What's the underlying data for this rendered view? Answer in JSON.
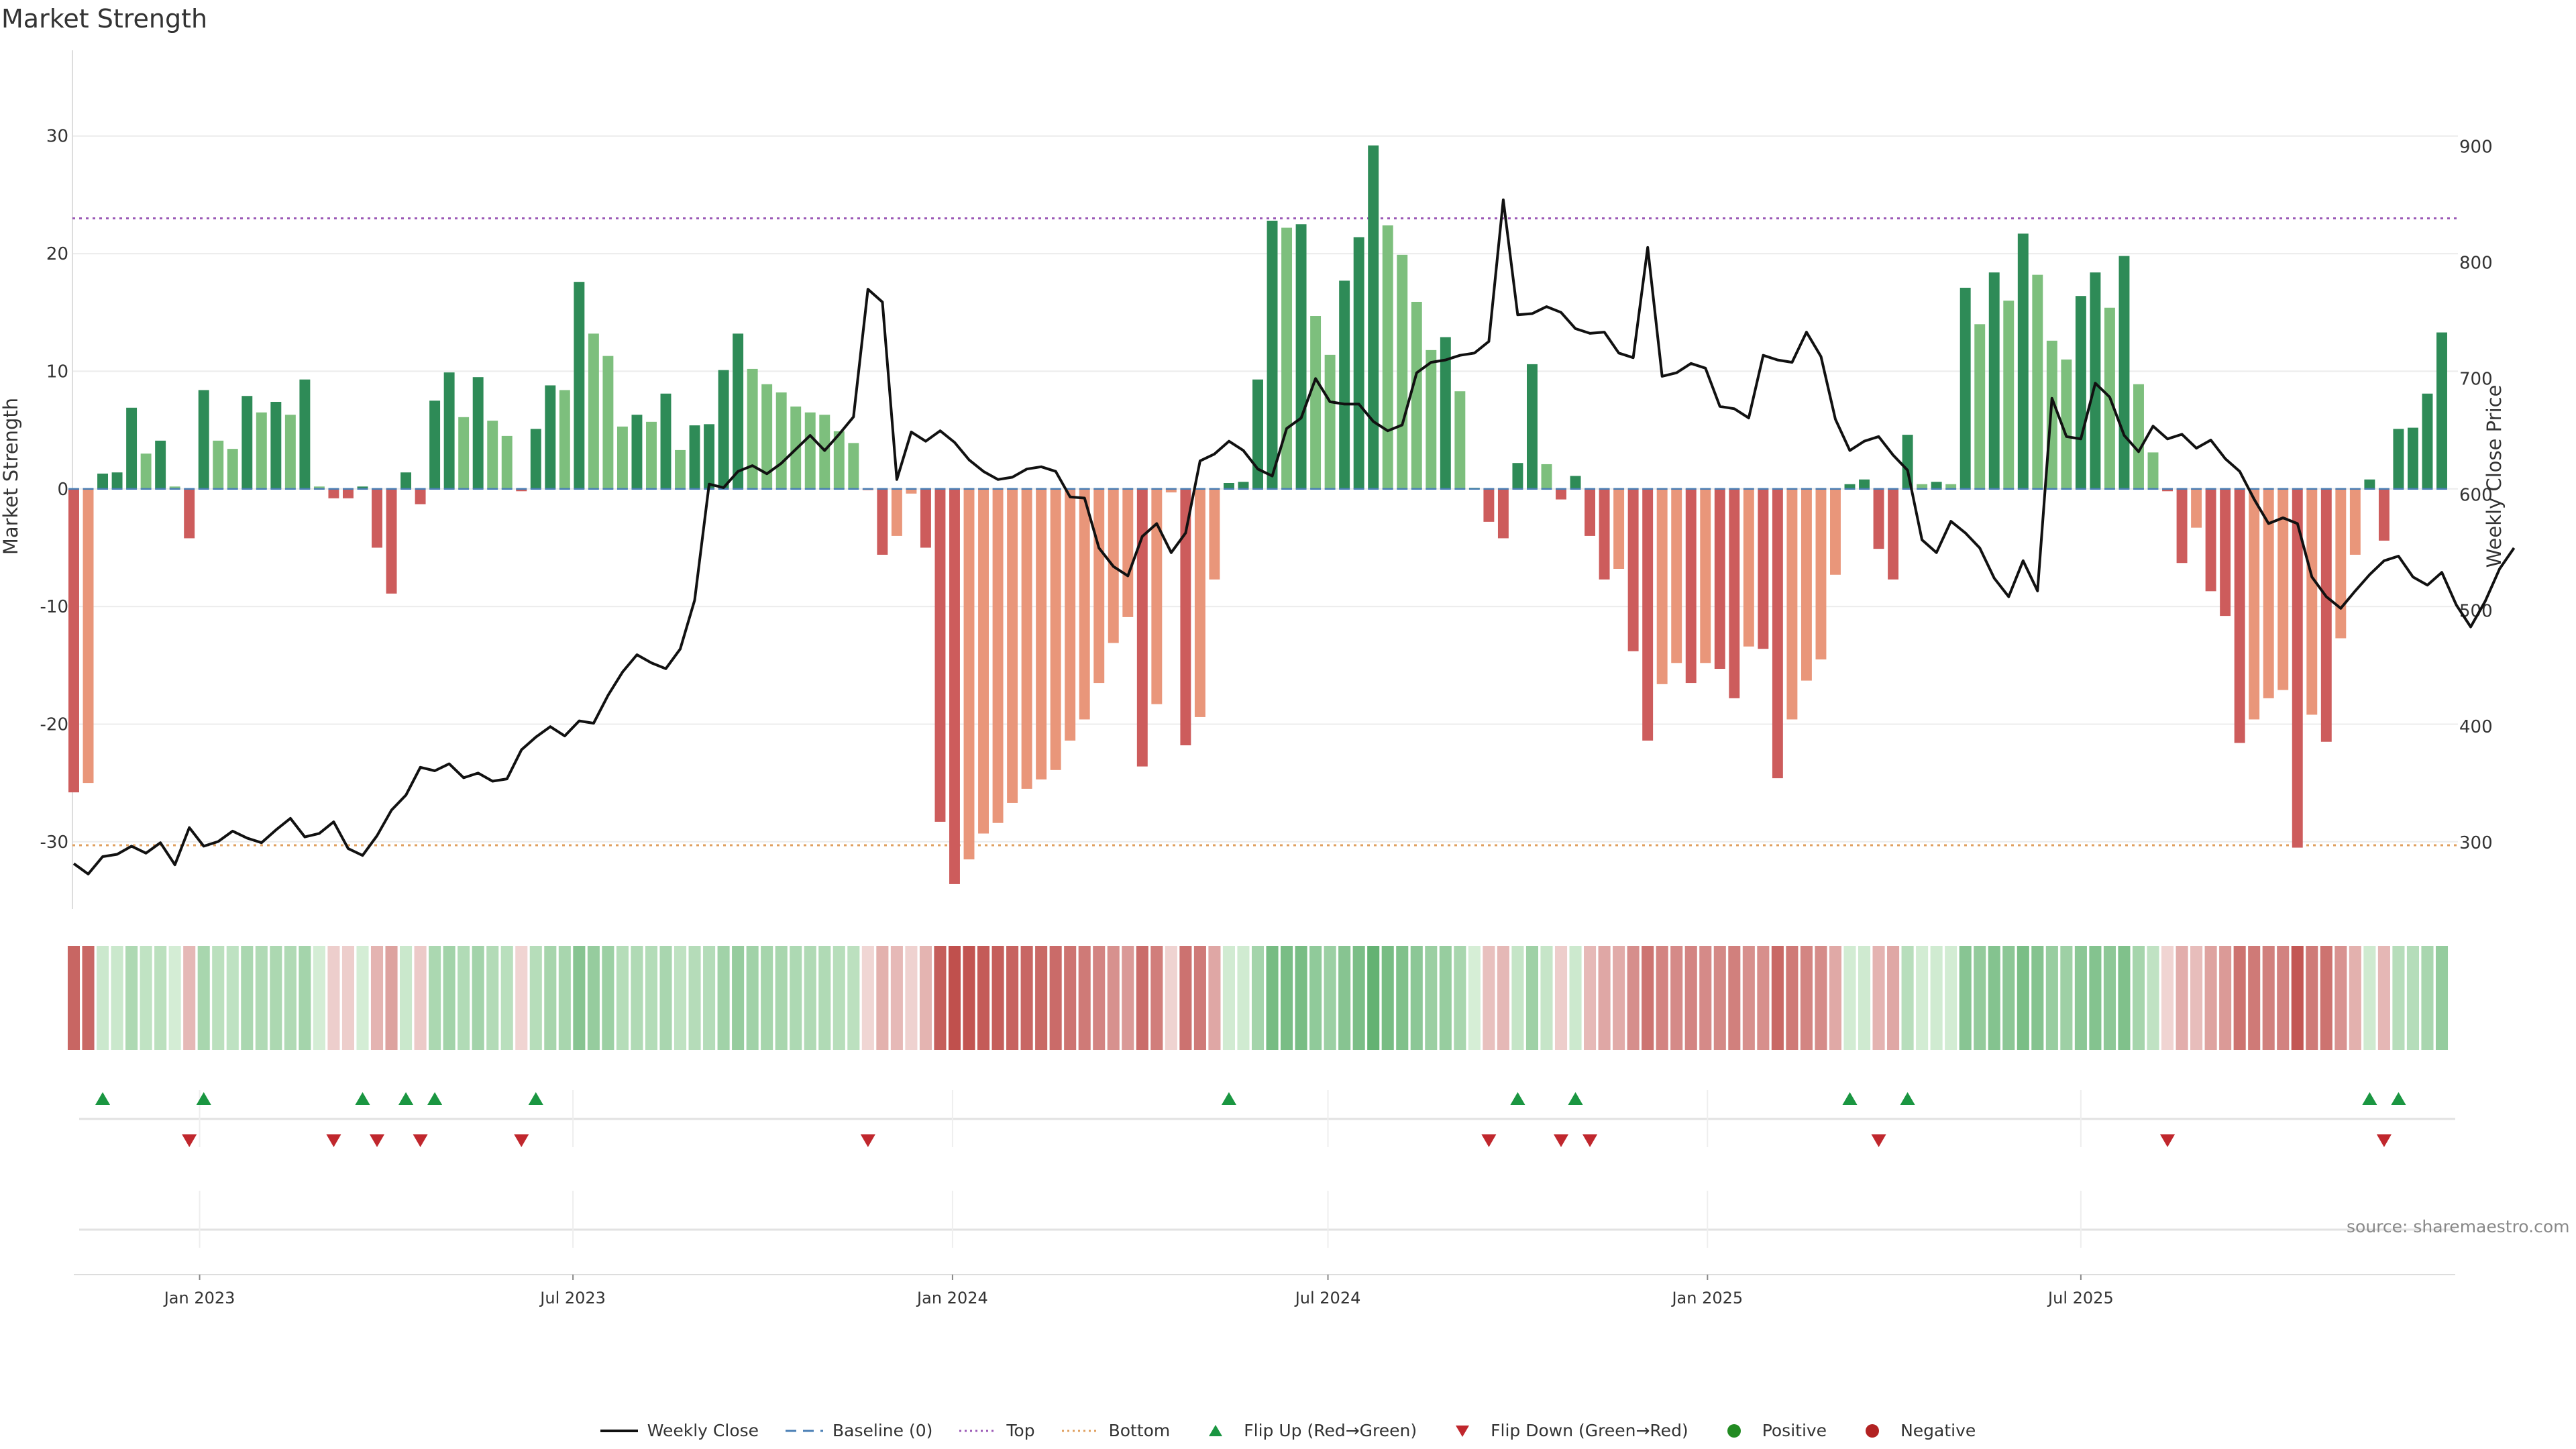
{
  "title": "Market Strength",
  "source_label": "source: sharemaestro.com",
  "colors": {
    "pos_dark": "#2e8b57",
    "pos_light": "#7dbf7d",
    "neg_dark": "#cd5c5c",
    "neg_light": "#e9967a",
    "price": "#111111",
    "baseline": "#4a7fb5",
    "top": "#9b59b6",
    "bottom": "#e0a060",
    "flip_up": "#1a9641",
    "flip_down": "#c0272d",
    "positive": "#228b22",
    "negative": "#b22222"
  },
  "legend": [
    {
      "key": "price",
      "label": "Weekly Close"
    },
    {
      "key": "baseline",
      "label": "Baseline (0)"
    },
    {
      "key": "top",
      "label": "Top"
    },
    {
      "key": "bottom",
      "label": "Bottom"
    },
    {
      "key": "flip_up",
      "label": "Flip Up (Red→Green)"
    },
    {
      "key": "flip_down",
      "label": "Flip Down (Green→Red)"
    },
    {
      "key": "positive",
      "label": "Positive"
    },
    {
      "key": "negative",
      "label": "Negative"
    }
  ],
  "chart_data": {
    "type": "bar",
    "start_date": "2022-11-01",
    "week_step_days": 7,
    "ylabel": "Market Strength",
    "y2label": "Weekly Close Price",
    "ylim": [
      -36,
      37
    ],
    "y2lim": [
      240,
      980
    ],
    "yticks": [
      -30,
      -20,
      -10,
      0,
      10,
      20,
      30
    ],
    "y2ticks": [
      300,
      400,
      500,
      600,
      700,
      800,
      900
    ],
    "top_level": 23,
    "bottom_level": -30.3,
    "xticks": [
      {
        "date": "2023-01-01",
        "label": "Jan 2023"
      },
      {
        "date": "2023-07-01",
        "label": "Jul 2023"
      },
      {
        "date": "2024-01-01",
        "label": "Jan 2024"
      },
      {
        "date": "2024-07-01",
        "label": "Jul 2024"
      },
      {
        "date": "2025-01-01",
        "label": "Jan 2025"
      },
      {
        "date": "2025-07-01",
        "label": "Jul 2025"
      }
    ],
    "strength": [
      -25.8,
      -25,
      1.3,
      1.4,
      6.9,
      3,
      4.1,
      0.2,
      -4.2,
      8.4,
      4.1,
      3.4,
      7.9,
      6.5,
      7.4,
      6.3,
      9.3,
      0.2,
      -0.8,
      -0.8,
      0.2,
      -5,
      -8.9,
      1.4,
      -1.3,
      7.5,
      9.9,
      6.1,
      9.5,
      5.8,
      4.5,
      -0.2,
      5.1,
      8.8,
      8.4,
      17.6,
      13.2,
      11.3,
      5.3,
      6.3,
      5.7,
      8.1,
      3.3,
      5.4,
      5.5,
      10.1,
      13.2,
      10.2,
      8.9,
      8.2,
      7,
      6.5,
      6.3,
      4.9,
      3.9,
      -0.1,
      -5.6,
      -4,
      -0.4,
      -5,
      -28.3,
      -33.6,
      -31.5,
      -29.3,
      -28.4,
      -26.7,
      -25.5,
      -24.7,
      -23.9,
      -21.4,
      -19.6,
      -16.5,
      -13.1,
      -10.9,
      -23.6,
      -18.3,
      -0.3,
      -21.8,
      -19.4,
      -7.7,
      0.5,
      0.6,
      9.3,
      22.8,
      22.2,
      22.5,
      14.7,
      11.4,
      17.7,
      21.4,
      29.2,
      22.4,
      19.9,
      15.9,
      11.8,
      12.9,
      8.3,
      0.1,
      -2.8,
      -4.2,
      2.2,
      10.6,
      2.1,
      -0.9,
      1.1,
      -4,
      -7.7,
      -6.8,
      -13.8,
      -21.4,
      -16.6,
      -14.8,
      -16.5,
      -14.8,
      -15.3,
      -17.8,
      -13.4,
      -13.6,
      -24.6,
      -19.6,
      -16.3,
      -14.5,
      -7.3,
      0.4,
      0.8,
      -5.1,
      -7.7,
      4.6,
      0.4,
      0.6,
      0.4,
      17.1,
      14,
      18.4,
      16,
      21.7,
      18.2,
      12.6,
      11,
      16.4,
      18.4,
      15.4,
      19.8,
      8.9,
      3.1,
      -0.2,
      -6.3,
      -3.3,
      -8.7,
      -10.8,
      -21.6,
      -19.6,
      -17.8,
      -17.1,
      -30.5,
      -19.2,
      -21.5,
      -12.7,
      -5.6,
      0.8,
      -4.4,
      5.1,
      5.2,
      8.1,
      13.3
    ],
    "price": [
      282,
      273,
      288,
      290,
      297,
      291,
      300,
      281,
      313,
      297,
      301,
      310,
      304,
      300,
      311,
      321,
      305,
      308,
      318,
      295,
      289,
      306,
      328,
      341,
      365,
      362,
      368,
      356,
      360,
      353,
      355,
      380,
      391,
      400,
      392,
      405,
      403,
      427,
      447,
      462,
      455,
      450,
      467,
      509,
      609,
      606,
      620,
      625,
      618,
      627,
      639,
      651,
      638,
      652,
      667,
      777,
      766,
      613,
      654,
      646,
      655,
      645,
      630,
      620,
      613,
      615,
      622,
      624,
      620,
      598,
      597,
      554,
      538,
      530,
      564,
      575,
      550,
      567,
      629,
      635,
      646,
      638,
      622,
      616,
      657,
      666,
      700,
      680,
      678,
      678,
      663,
      655,
      660,
      705,
      714,
      716,
      720,
      722,
      732,
      854,
      755,
      756,
      762,
      757,
      743,
      739,
      740,
      722,
      718,
      813,
      702,
      705,
      713,
      709,
      676,
      674,
      666,
      720,
      716,
      714,
      740,
      719,
      665,
      638,
      646,
      650,
      634,
      621,
      561,
      550,
      577,
      567,
      554,
      528,
      512,
      543,
      517,
      683,
      650,
      648,
      696,
      684,
      651,
      637,
      659,
      648,
      652,
      640,
      647,
      631,
      620,
      596,
      575,
      580,
      575,
      529,
      512,
      502,
      517,
      531,
      543,
      547,
      529,
      522,
      533,
      505,
      486,
      508,
      536,
      554
    ]
  }
}
